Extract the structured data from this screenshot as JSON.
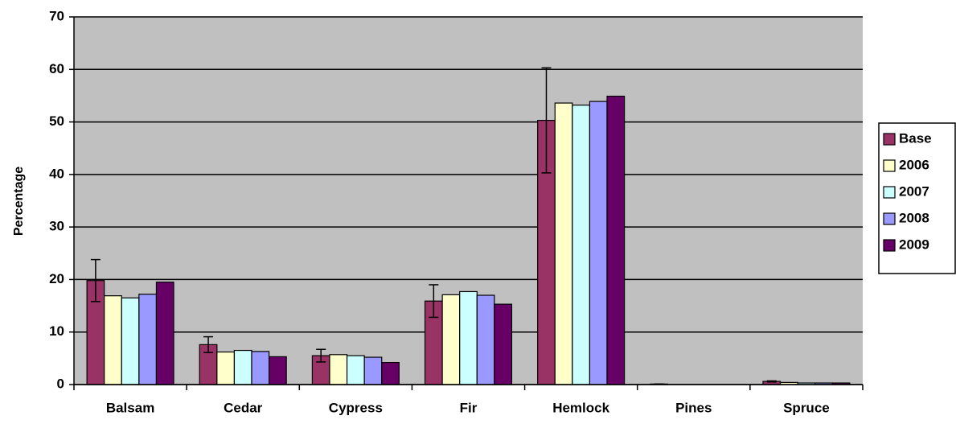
{
  "chart_data": {
    "type": "bar",
    "y_label": "Percentage",
    "categories": [
      "Balsam",
      "Cedar",
      "Cypress",
      "Fir",
      "Hemlock",
      "Pines",
      "Spruce"
    ],
    "series": [
      {
        "name": "Base",
        "color": "#993366",
        "values": [
          19.8,
          7.6,
          5.5,
          15.9,
          50.3,
          0.1,
          0.6
        ],
        "errors": [
          4.0,
          1.5,
          1.2,
          3.1,
          10.0,
          0,
          0.1
        ]
      },
      {
        "name": "2006",
        "color": "#FFFFCC",
        "values": [
          16.9,
          6.2,
          5.7,
          17.1,
          53.6,
          0,
          0.4
        ]
      },
      {
        "name": "2007",
        "color": "#CCFFFF",
        "values": [
          16.5,
          6.5,
          5.5,
          17.7,
          53.2,
          0,
          0.3
        ]
      },
      {
        "name": "2008",
        "color": "#9999FF",
        "values": [
          17.2,
          6.3,
          5.2,
          17.0,
          53.9,
          0,
          0.3
        ]
      },
      {
        "name": "2009",
        "color": "#660066",
        "values": [
          19.5,
          5.3,
          4.2,
          15.3,
          54.9,
          0,
          0.3
        ]
      }
    ],
    "ylim": [
      0,
      70
    ],
    "yticks": [
      0,
      10,
      20,
      30,
      40,
      50,
      60,
      70
    ],
    "grid": true,
    "plot_background": "#C0C0C0",
    "legend": "right"
  }
}
